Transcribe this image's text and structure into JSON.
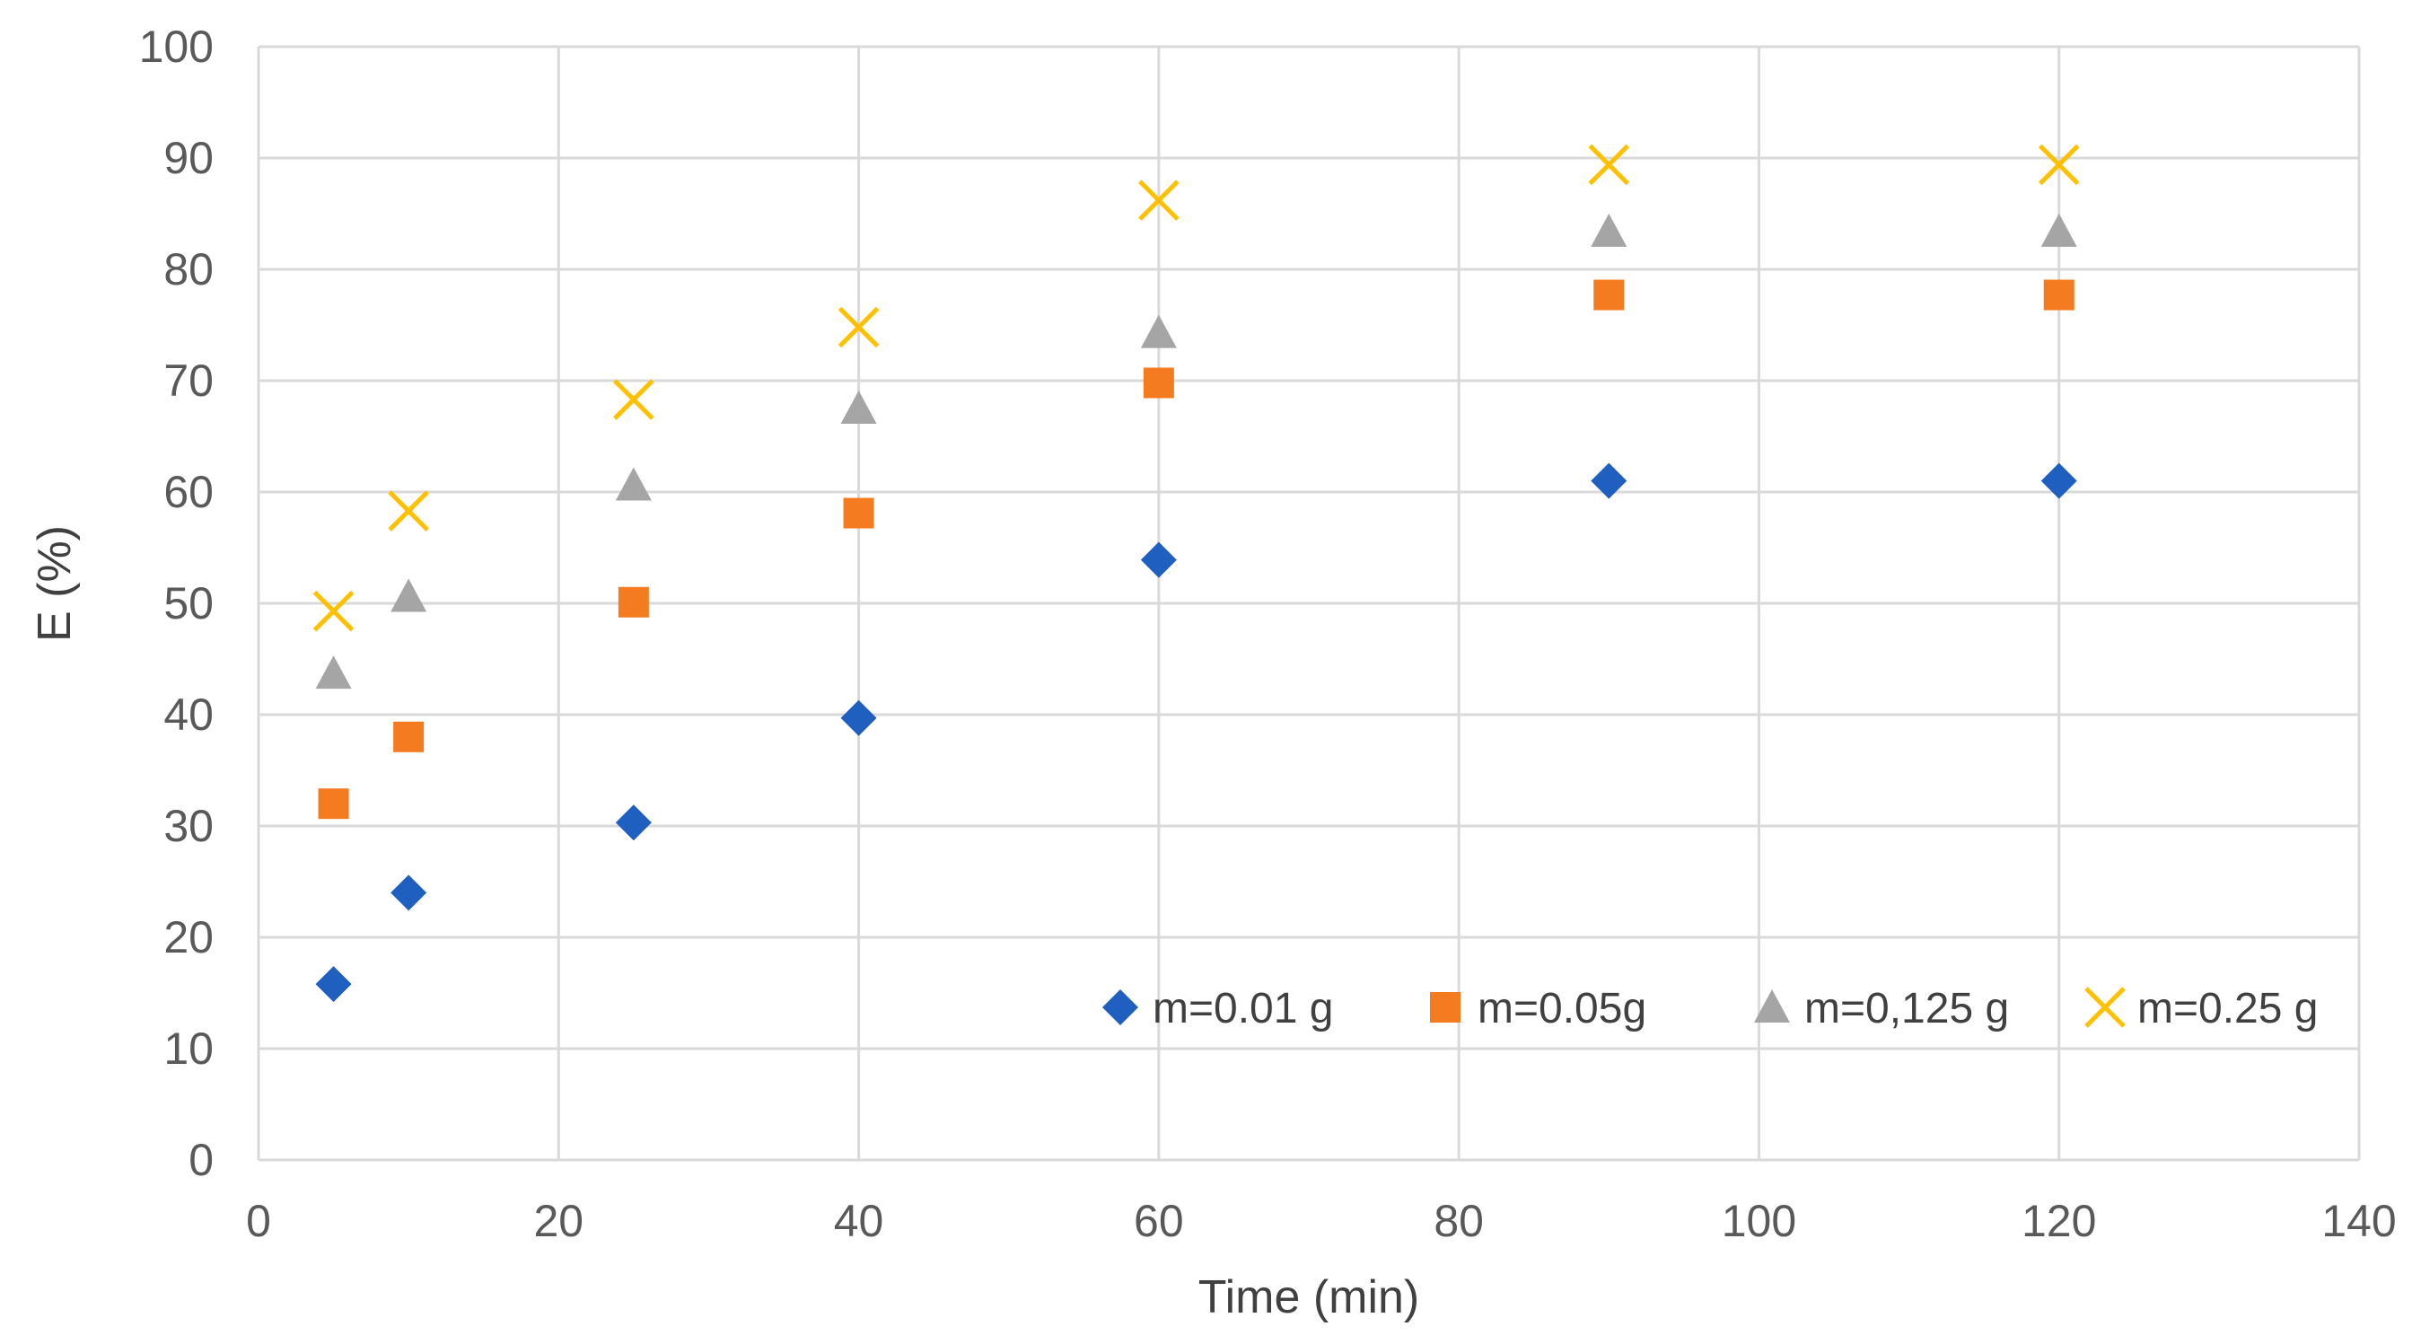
{
  "chart_data": {
    "type": "scatter",
    "title": "",
    "xlabel": "Time (min)",
    "ylabel": "E (%)",
    "xlim": [
      0,
      140
    ],
    "ylim": [
      0,
      100
    ],
    "xticks": [
      0,
      20,
      40,
      60,
      80,
      100,
      120,
      140
    ],
    "yticks": [
      0,
      10,
      20,
      30,
      40,
      50,
      60,
      70,
      80,
      90,
      100
    ],
    "grid": true,
    "legend_position": "bottom-right inside",
    "x": [
      5,
      10,
      25,
      40,
      60,
      90,
      120
    ],
    "series": [
      {
        "name": "m=0.01 g",
        "marker": "diamond",
        "color": "#1f5fbf",
        "values": [
          15.8,
          24,
          30.3,
          39.7,
          53.9,
          61,
          61
        ]
      },
      {
        "name": "m=0.05g",
        "marker": "square",
        "color": "#f47b20",
        "values": [
          32,
          38,
          50.1,
          58.1,
          69.8,
          77.7,
          77.7
        ]
      },
      {
        "name": "m=0,125 g",
        "marker": "triangle",
        "color": "#a5a5a5",
        "values": [
          43.7,
          50.6,
          60.6,
          67.5,
          74.3,
          83.4,
          83.4
        ]
      },
      {
        "name": "m=0.25  g",
        "marker": "x",
        "color": "#ffc000",
        "values": [
          49.3,
          58.3,
          68.3,
          74.8,
          86.2,
          89.4,
          89.4
        ]
      }
    ]
  }
}
